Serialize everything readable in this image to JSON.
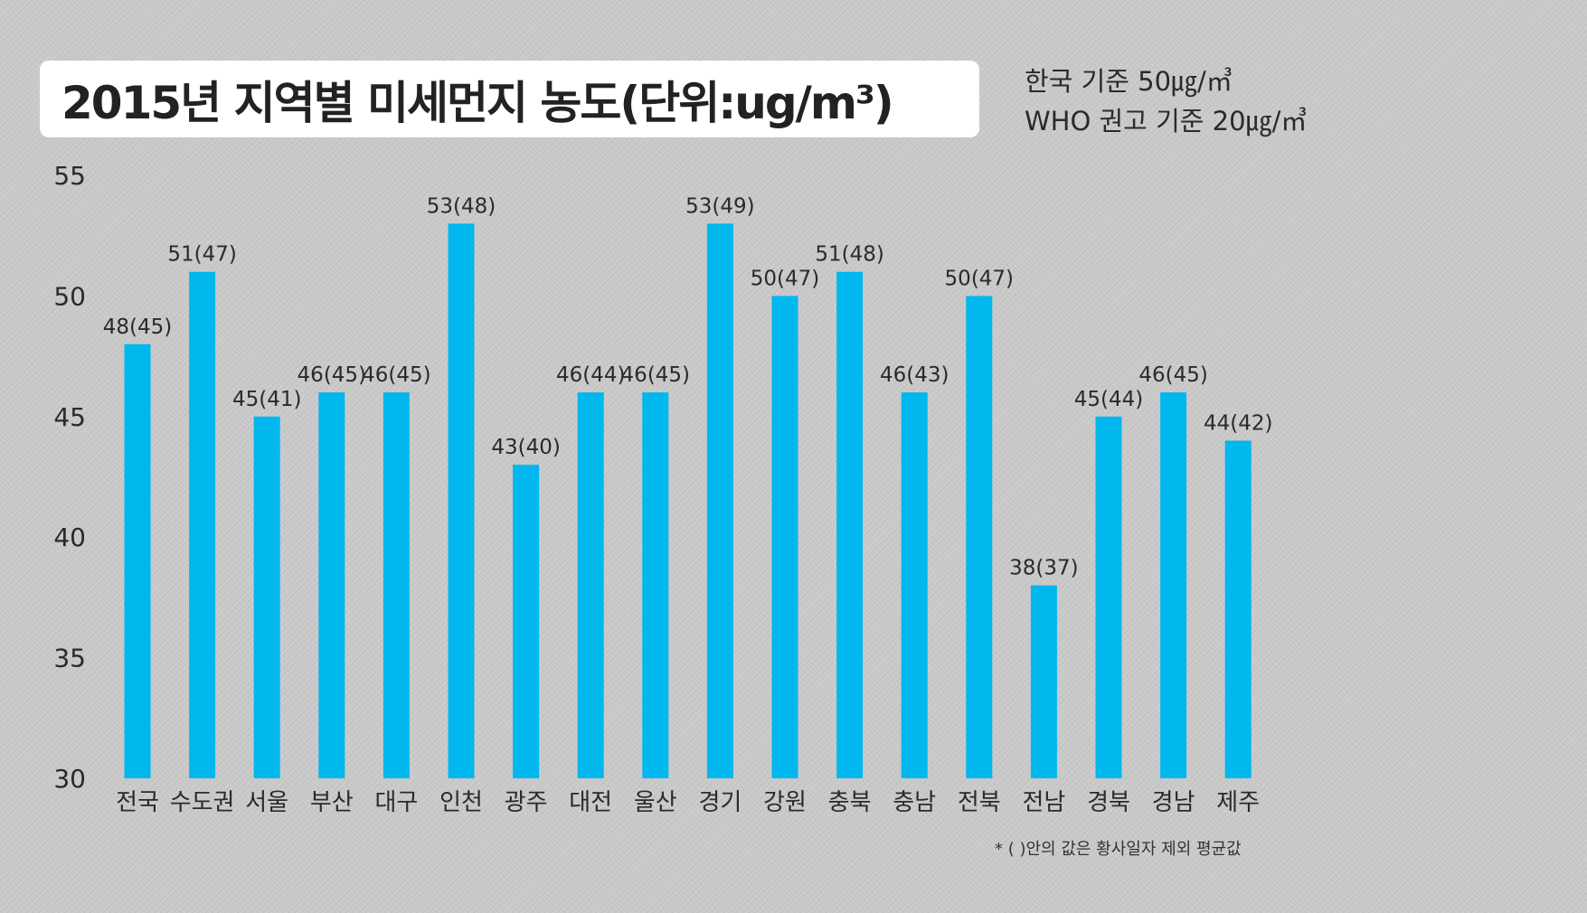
{
  "header": {
    "title": "2015년 지역별 미세먼지 농도(단위:ug/m³)",
    "korea_standard": "한국 기준 50㎍/㎥",
    "who_standard": "WHO 권고 기준 20㎍/㎥"
  },
  "footnote": "* ( )안의 값은 황사일자 제외 평균값",
  "colors": {
    "bar": "#00b7ee",
    "background": "#c9c9c9"
  },
  "chart_data": {
    "type": "bar",
    "title": "2015년 지역별 미세먼지 농도(단위:ug/m³)",
    "xlabel": "",
    "ylabel": "",
    "ylim": [
      30,
      55
    ],
    "yticks": [
      30,
      35,
      40,
      45,
      50,
      55
    ],
    "grid": false,
    "categories": [
      "전국",
      "수도권",
      "서울",
      "부산",
      "대구",
      "인천",
      "광주",
      "대전",
      "울산",
      "경기",
      "강원",
      "충북",
      "충남",
      "전북",
      "전남",
      "경북",
      "경남",
      "제주"
    ],
    "values": [
      48,
      51,
      45,
      46,
      46,
      53,
      43,
      46,
      46,
      53,
      50,
      51,
      46,
      50,
      38,
      45,
      46,
      44
    ],
    "excluding_yellow_dust_values": [
      45,
      47,
      41,
      45,
      45,
      48,
      40,
      44,
      45,
      49,
      47,
      48,
      43,
      47,
      37,
      44,
      45,
      42
    ],
    "data_labels": [
      "48(45)",
      "51(47)",
      "45(41)",
      "46(45)",
      "46(45)",
      "53(48)",
      "43(40)",
      "46(44)",
      "46(45)",
      "53(49)",
      "50(47)",
      "51(48)",
      "46(43)",
      "50(47)",
      "38(37)",
      "45(44)",
      "46(45)",
      "44(42)"
    ]
  }
}
